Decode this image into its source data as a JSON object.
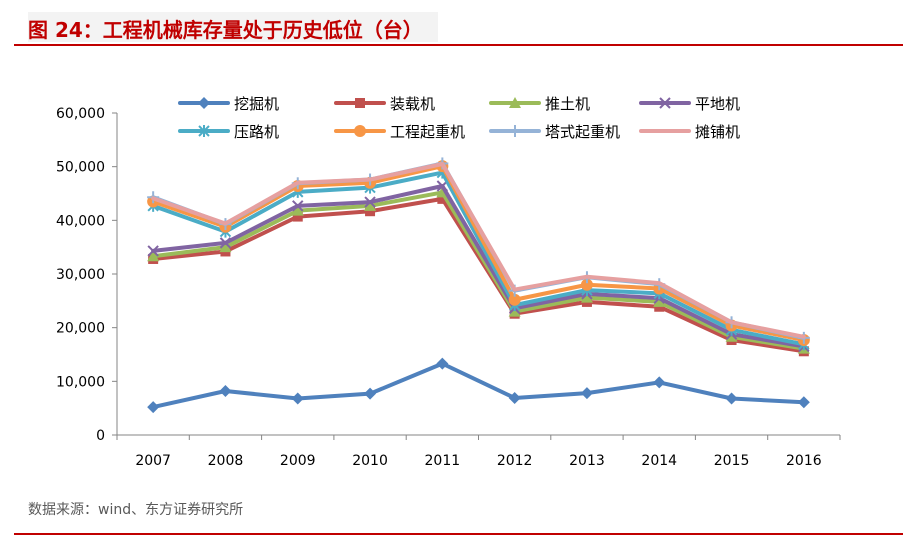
{
  "title": "图 24：工程机械库存量处于历史低位（台）",
  "source": "数据来源：wind、东方证券研究所",
  "chart_data": {
    "type": "line",
    "categories": [
      "2007",
      "2008",
      "2009",
      "2010",
      "2011",
      "2012",
      "2013",
      "2014",
      "2015",
      "2016"
    ],
    "ylim": [
      0,
      60000
    ],
    "yticks": [
      "0",
      "10,000",
      "20,000",
      "30,000",
      "40,000",
      "50,000",
      "60,000"
    ],
    "yticks_values": [
      0,
      10000,
      20000,
      30000,
      40000,
      50000,
      60000
    ],
    "legend_placement": "top",
    "grid": false,
    "series": [
      {
        "name": "挖掘机",
        "color": "#4f81bd",
        "marker": "diamond",
        "values": [
          5200,
          8200,
          6800,
          7700,
          13300,
          6900,
          7800,
          9800,
          6800,
          6100
        ]
      },
      {
        "name": "装载机",
        "color": "#c0504d",
        "marker": "square",
        "values": [
          32800,
          34200,
          40700,
          41700,
          44000,
          22600,
          24800,
          23900,
          17700,
          15600
        ]
      },
      {
        "name": "推土机",
        "color": "#9bbb59",
        "marker": "triangle",
        "values": [
          33300,
          35000,
          41800,
          42700,
          45200,
          23000,
          25600,
          24800,
          18300,
          16100
        ]
      },
      {
        "name": "平地机",
        "color": "#8064a2",
        "marker": "x",
        "values": [
          34300,
          35800,
          42700,
          43400,
          46400,
          23600,
          26300,
          25500,
          18800,
          16500
        ]
      },
      {
        "name": "压路机",
        "color": "#4bacc6",
        "marker": "star",
        "values": [
          42700,
          37900,
          45300,
          46100,
          48900,
          24200,
          27000,
          26400,
          19600,
          16900
        ]
      },
      {
        "name": "工程起重机",
        "color": "#f79646",
        "marker": "circle",
        "values": [
          43500,
          38800,
          46400,
          47000,
          50100,
          25200,
          28000,
          27300,
          20400,
          17700
        ]
      },
      {
        "name": "塔式起重机",
        "color": "#95b3d7",
        "marker": "plus",
        "values": [
          44300,
          39300,
          46900,
          47600,
          50600,
          26900,
          29400,
          28100,
          21000,
          18100
        ]
      },
      {
        "name": "摊铺机",
        "color": "#e6a0a0",
        "marker": "none",
        "values": [
          44100,
          39400,
          47000,
          47600,
          50500,
          27100,
          29500,
          28300,
          21000,
          18300
        ]
      }
    ]
  }
}
